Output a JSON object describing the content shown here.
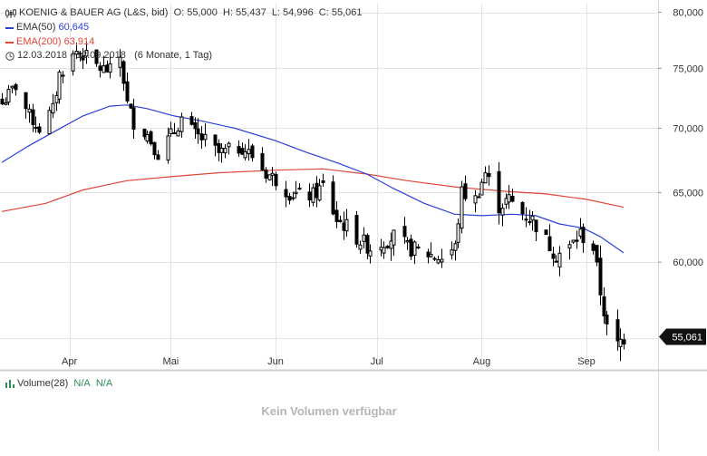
{
  "header": {
    "title": "KOENIG & BAUER AG (L&S, bid)",
    "ohlc": "O: 55,000  H: 55,437  L: 54,996  C: 55,061",
    "ema50_label": "EMA(50)",
    "ema50_value": "60,645",
    "ema200_label": "EMA(200)",
    "ema200_value": "63,914",
    "period": "12.03.2018 - 12.09.2018",
    "interval": "(6 Monate, 1 Tag)"
  },
  "volume": {
    "label": "Volume(28)",
    "v1": "N/A",
    "v2": "N/A",
    "empty_text": "Kein Volumen verfügbar"
  },
  "colors": {
    "ema50": "#2b3fd8",
    "ema200": "#e0453a",
    "candle": "#000000",
    "grid": "#e4e4e4",
    "last_price_bg": "#111111"
  },
  "chart_data": {
    "type": "candlestick",
    "x_range": [
      "2018-03-12",
      "2018-09-12"
    ],
    "x_ticks": [
      {
        "label": "Apr",
        "date": "2018-04-01"
      },
      {
        "label": "Mai",
        "date": "2018-05-01"
      },
      {
        "label": "Jun",
        "date": "2018-06-01"
      },
      {
        "label": "Jul",
        "date": "2018-07-01"
      },
      {
        "label": "Aug",
        "date": "2018-08-01"
      },
      {
        "label": "Sep",
        "date": "2018-09-01"
      }
    ],
    "y_ticks": [
      {
        "label": "80,000",
        "value": 80
      },
      {
        "label": "75,000",
        "value": 75
      },
      {
        "label": "70,000",
        "value": 70
      },
      {
        "label": "65,000",
        "value": 65
      },
      {
        "label": "60,000",
        "value": 60
      }
    ],
    "ylim": [
      53.0,
      80.8
    ],
    "last_price": {
      "label": "55,061",
      "value": 55.061
    },
    "close_series": [
      [
        "2018-03-12",
        72.0
      ],
      [
        "2018-03-16",
        73.5
      ],
      [
        "2018-03-20",
        71.0
      ],
      [
        "2018-03-23",
        70.0
      ],
      [
        "2018-03-27",
        71.5
      ],
      [
        "2018-03-29",
        74.5
      ],
      [
        "2018-04-03",
        76.5
      ],
      [
        "2018-04-06",
        76.0
      ],
      [
        "2018-04-10",
        75.0
      ],
      [
        "2018-04-13",
        74.8
      ],
      [
        "2018-04-16",
        76.0
      ],
      [
        "2018-04-18",
        72.0
      ],
      [
        "2018-04-20",
        70.5
      ],
      [
        "2018-04-24",
        69.5
      ],
      [
        "2018-04-27",
        68.0
      ],
      [
        "2018-05-02",
        69.8
      ],
      [
        "2018-05-04",
        70.8
      ],
      [
        "2018-05-08",
        69.5
      ],
      [
        "2018-05-11",
        69.0
      ],
      [
        "2018-05-15",
        68.0
      ],
      [
        "2018-05-18",
        68.2
      ],
      [
        "2018-05-22",
        68.5
      ],
      [
        "2018-05-25",
        67.8
      ],
      [
        "2018-05-29",
        66.5
      ],
      [
        "2018-06-01",
        66.0
      ],
      [
        "2018-06-05",
        65.0
      ],
      [
        "2018-06-08",
        64.8
      ],
      [
        "2018-06-12",
        64.8
      ],
      [
        "2018-06-15",
        65.5
      ],
      [
        "2018-06-19",
        63.0
      ],
      [
        "2018-06-22",
        62.5
      ],
      [
        "2018-06-26",
        61.5
      ],
      [
        "2018-06-29",
        61.0
      ],
      [
        "2018-07-03",
        61.5
      ],
      [
        "2018-07-06",
        61.8
      ],
      [
        "2018-07-10",
        61.0
      ],
      [
        "2018-07-13",
        60.8
      ],
      [
        "2018-07-17",
        60.5
      ],
      [
        "2018-07-20",
        60.3
      ],
      [
        "2018-07-24",
        61.0
      ],
      [
        "2018-07-26",
        65.0
      ],
      [
        "2018-07-30",
        64.5
      ],
      [
        "2018-08-02",
        66.5
      ],
      [
        "2018-08-06",
        64.0
      ],
      [
        "2018-08-09",
        64.5
      ],
      [
        "2018-08-13",
        63.5
      ],
      [
        "2018-08-16",
        63.0
      ],
      [
        "2018-08-20",
        61.5
      ],
      [
        "2018-08-23",
        60.5
      ],
      [
        "2018-08-27",
        61.0
      ],
      [
        "2018-08-30",
        62.0
      ],
      [
        "2018-09-03",
        61.0
      ],
      [
        "2018-09-05",
        58.0
      ],
      [
        "2018-09-07",
        55.5
      ],
      [
        "2018-09-10",
        54.5
      ],
      [
        "2018-09-12",
        55.061
      ]
    ],
    "ema_series": [
      {
        "name": "EMA(50)",
        "color": "#2b3fd8",
        "points": [
          [
            "2018-03-12",
            67.3
          ],
          [
            "2018-03-20",
            68.6
          ],
          [
            "2018-03-28",
            69.8
          ],
          [
            "2018-04-05",
            71.0
          ],
          [
            "2018-04-13",
            71.8
          ],
          [
            "2018-04-18",
            71.9
          ],
          [
            "2018-04-24",
            71.6
          ],
          [
            "2018-05-02",
            71.0
          ],
          [
            "2018-05-10",
            70.6
          ],
          [
            "2018-05-20",
            70.0
          ],
          [
            "2018-06-01",
            69.0
          ],
          [
            "2018-06-10",
            68.1
          ],
          [
            "2018-06-20",
            67.2
          ],
          [
            "2018-06-28",
            66.4
          ],
          [
            "2018-07-06",
            65.3
          ],
          [
            "2018-07-15",
            64.2
          ],
          [
            "2018-07-24",
            63.4
          ],
          [
            "2018-08-01",
            63.3
          ],
          [
            "2018-08-10",
            63.4
          ],
          [
            "2018-08-17",
            63.3
          ],
          [
            "2018-08-24",
            62.7
          ],
          [
            "2018-08-31",
            62.4
          ],
          [
            "2018-09-05",
            61.8
          ],
          [
            "2018-09-12",
            60.645
          ]
        ]
      },
      {
        "name": "EMA(200)",
        "color": "#e0453a",
        "points": [
          [
            "2018-03-12",
            63.6
          ],
          [
            "2018-03-25",
            64.2
          ],
          [
            "2018-04-05",
            65.2
          ],
          [
            "2018-04-18",
            65.9
          ],
          [
            "2018-05-01",
            66.2
          ],
          [
            "2018-05-15",
            66.5
          ],
          [
            "2018-06-01",
            66.7
          ],
          [
            "2018-06-15",
            66.8
          ],
          [
            "2018-06-28",
            66.4
          ],
          [
            "2018-07-10",
            65.9
          ],
          [
            "2018-07-25",
            65.4
          ],
          [
            "2018-08-08",
            65.1
          ],
          [
            "2018-08-20",
            64.9
          ],
          [
            "2018-09-01",
            64.5
          ],
          [
            "2018-09-12",
            63.914
          ]
        ]
      }
    ]
  }
}
